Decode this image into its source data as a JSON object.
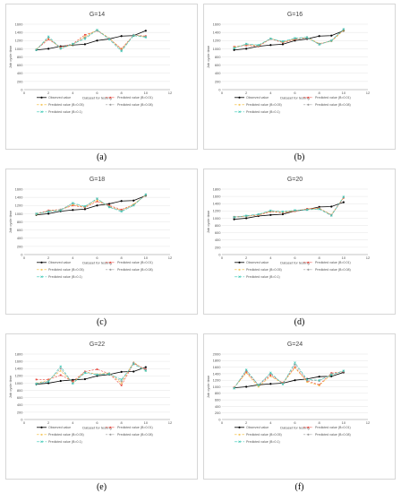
{
  "figure": {
    "legend_labels": [
      "Observed value",
      "Predicted value (B=0.01)",
      "Predicted value (B=0.05)",
      "Predicted value (B=0.08)",
      "Predicted value (B=0.1)"
    ],
    "series_colors": [
      "#000000",
      "#e8453c",
      "#f2b830",
      "#9c9c9c",
      "#3cc8b4"
    ]
  },
  "chart_data": [
    {
      "type": "line",
      "title": "G=14",
      "caption": "(a)",
      "xlabel": "Dataset for testing",
      "ylabel": "Job cycle time",
      "xlim": [
        0,
        12
      ],
      "ylim": [
        0,
        1600
      ],
      "xticks": [
        0,
        2,
        4,
        6,
        8,
        10,
        12
      ],
      "yticks": [
        0,
        200,
        400,
        600,
        800,
        1000,
        1200,
        1400,
        1600
      ],
      "x": [
        1,
        2,
        3,
        4,
        5,
        6,
        7,
        8,
        9,
        10
      ],
      "series": [
        {
          "name": "Observed value",
          "values": [
            970,
            1000,
            1060,
            1090,
            1110,
            1200,
            1240,
            1310,
            1320,
            1440
          ]
        },
        {
          "name": "Predicted value (B=0.01)",
          "values": [
            980,
            1230,
            1040,
            1120,
            1340,
            1440,
            1250,
            1000,
            1330,
            1310
          ]
        },
        {
          "name": "Predicted value (B=0.05)",
          "values": [
            990,
            1260,
            1010,
            1100,
            1300,
            1460,
            1260,
            980,
            1330,
            1300
          ]
        },
        {
          "name": "Predicted value (B=0.08)",
          "values": [
            975,
            1270,
            1000,
            1110,
            1270,
            1450,
            1250,
            960,
            1340,
            1290
          ]
        },
        {
          "name": "Predicted value (B=0.1)",
          "values": [
            970,
            1300,
            1010,
            1120,
            1240,
            1460,
            1230,
            940,
            1320,
            1280
          ]
        }
      ]
    },
    {
      "type": "line",
      "title": "G=16",
      "caption": "(b)",
      "xlabel": "Dataset for testing",
      "ylabel": "Job cycle time",
      "xlim": [
        0,
        12
      ],
      "ylim": [
        0,
        1600
      ],
      "xticks": [
        0,
        2,
        4,
        6,
        8,
        10,
        12
      ],
      "yticks": [
        0,
        200,
        400,
        600,
        800,
        1000,
        1200,
        1400,
        1600
      ],
      "x": [
        1,
        2,
        3,
        4,
        5,
        6,
        7,
        8,
        9,
        10
      ],
      "series": [
        {
          "name": "Observed value",
          "values": [
            970,
            1000,
            1060,
            1090,
            1110,
            1200,
            1240,
            1310,
            1320,
            1440
          ]
        },
        {
          "name": "Predicted value (B=0.01)",
          "values": [
            1050,
            1080,
            1060,
            1240,
            1150,
            1230,
            1280,
            1110,
            1200,
            1460
          ]
        },
        {
          "name": "Predicted value (B=0.05)",
          "values": [
            1040,
            1100,
            1070,
            1250,
            1160,
            1240,
            1270,
            1130,
            1180,
            1450
          ]
        },
        {
          "name": "Predicted value (B=0.08)",
          "values": [
            1020,
            1110,
            1080,
            1240,
            1170,
            1250,
            1260,
            1120,
            1190,
            1470
          ]
        },
        {
          "name": "Predicted value (B=0.1)",
          "values": [
            1010,
            1120,
            1090,
            1250,
            1180,
            1260,
            1280,
            1100,
            1200,
            1480
          ]
        }
      ]
    },
    {
      "type": "line",
      "title": "G=18",
      "caption": "(c)",
      "xlabel": "Dataset for testing",
      "ylabel": "Job cycle time",
      "xlim": [
        0,
        12
      ],
      "ylim": [
        0,
        1600
      ],
      "xticks": [
        0,
        2,
        4,
        6,
        8,
        10,
        12
      ],
      "yticks": [
        0,
        200,
        400,
        600,
        800,
        1000,
        1200,
        1400,
        1600
      ],
      "x": [
        1,
        2,
        3,
        4,
        5,
        6,
        7,
        8,
        9,
        10
      ],
      "series": [
        {
          "name": "Observed value",
          "values": [
            970,
            1000,
            1060,
            1090,
            1110,
            1200,
            1240,
            1310,
            1320,
            1440
          ]
        },
        {
          "name": "Predicted value (B=0.01)",
          "values": [
            1000,
            1080,
            1100,
            1200,
            1150,
            1300,
            1200,
            1100,
            1220,
            1460
          ]
        },
        {
          "name": "Predicted value (B=0.05)",
          "values": [
            980,
            1070,
            1090,
            1220,
            1160,
            1330,
            1180,
            1080,
            1230,
            1450
          ]
        },
        {
          "name": "Predicted value (B=0.08)",
          "values": [
            990,
            1060,
            1100,
            1250,
            1170,
            1360,
            1170,
            1070,
            1210,
            1460
          ]
        },
        {
          "name": "Predicted value (B=0.1)",
          "values": [
            1000,
            1050,
            1080,
            1260,
            1180,
            1370,
            1160,
            1050,
            1200,
            1470
          ]
        }
      ]
    },
    {
      "type": "line",
      "title": "G=20",
      "caption": "(d)",
      "xlabel": "Dataset for testing",
      "ylabel": "Job cycle time",
      "xlim": [
        0,
        12
      ],
      "ylim": [
        0,
        1800
      ],
      "xticks": [
        0,
        2,
        4,
        6,
        8,
        10,
        12
      ],
      "yticks": [
        0,
        200,
        400,
        600,
        800,
        1000,
        1200,
        1400,
        1600,
        1800
      ],
      "x": [
        1,
        2,
        3,
        4,
        5,
        6,
        7,
        8,
        9,
        10
      ],
      "series": [
        {
          "name": "Observed value",
          "values": [
            970,
            1000,
            1060,
            1090,
            1110,
            1200,
            1240,
            1310,
            1320,
            1440
          ]
        },
        {
          "name": "Predicted value (B=0.01)",
          "values": [
            1040,
            1060,
            1080,
            1180,
            1150,
            1190,
            1260,
            1280,
            1080,
            1560
          ]
        },
        {
          "name": "Predicted value (B=0.05)",
          "values": [
            1030,
            1050,
            1090,
            1190,
            1160,
            1200,
            1250,
            1270,
            1100,
            1570
          ]
        },
        {
          "name": "Predicted value (B=0.08)",
          "values": [
            1020,
            1060,
            1100,
            1200,
            1170,
            1210,
            1240,
            1260,
            1090,
            1580
          ]
        },
        {
          "name": "Predicted value (B=0.1)",
          "values": [
            1030,
            1070,
            1110,
            1210,
            1180,
            1220,
            1230,
            1250,
            1070,
            1590
          ]
        }
      ]
    },
    {
      "type": "line",
      "title": "G=22",
      "caption": "(e)",
      "xlabel": "Dataset for testing",
      "ylabel": "Job cycle time",
      "xlim": [
        0,
        12
      ],
      "ylim": [
        0,
        1800
      ],
      "xticks": [
        0,
        2,
        4,
        6,
        8,
        10,
        12
      ],
      "yticks": [
        0,
        200,
        400,
        600,
        800,
        1000,
        1200,
        1400,
        1600,
        1800
      ],
      "x": [
        1,
        2,
        3,
        4,
        5,
        6,
        7,
        8,
        9,
        10
      ],
      "series": [
        {
          "name": "Observed value",
          "values": [
            970,
            1000,
            1060,
            1090,
            1110,
            1200,
            1240,
            1310,
            1320,
            1440
          ]
        },
        {
          "name": "Predicted value (B=0.01)",
          "values": [
            1100,
            1100,
            1220,
            1050,
            1320,
            1380,
            1260,
            940,
            1540,
            1380
          ]
        },
        {
          "name": "Predicted value (B=0.05)",
          "values": [
            1000,
            1080,
            1340,
            1010,
            1310,
            1250,
            1280,
            1000,
            1580,
            1340
          ]
        },
        {
          "name": "Predicted value (B=0.08)",
          "values": [
            990,
            1060,
            1400,
            1000,
            1300,
            1240,
            1270,
            1050,
            1560,
            1360
          ]
        },
        {
          "name": "Predicted value (B=0.1)",
          "values": [
            980,
            1040,
            1460,
            990,
            1280,
            1230,
            1250,
            1100,
            1520,
            1340
          ]
        }
      ]
    },
    {
      "type": "line",
      "title": "G=24",
      "caption": "(f)",
      "xlabel": "Dataset for testing",
      "ylabel": "Job cycle time",
      "xlim": [
        0,
        12
      ],
      "ylim": [
        0,
        2000
      ],
      "xticks": [
        0,
        2,
        4,
        6,
        8,
        10,
        12
      ],
      "yticks": [
        0,
        200,
        400,
        600,
        800,
        1000,
        1200,
        1400,
        1600,
        1800,
        2000
      ],
      "x": [
        1,
        2,
        3,
        4,
        5,
        6,
        7,
        8,
        9,
        10
      ],
      "series": [
        {
          "name": "Observed value",
          "values": [
            970,
            1000,
            1060,
            1090,
            1110,
            1200,
            1240,
            1310,
            1320,
            1440
          ]
        },
        {
          "name": "Predicted value (B=0.01)",
          "values": [
            980,
            1450,
            1050,
            1350,
            1120,
            1600,
            1180,
            1060,
            1420,
            1460
          ]
        },
        {
          "name": "Predicted value (B=0.05)",
          "values": [
            970,
            1420,
            1000,
            1320,
            1100,
            1580,
            1150,
            1040,
            1380,
            1480
          ]
        },
        {
          "name": "Predicted value (B=0.08)",
          "values": [
            960,
            1500,
            1060,
            1400,
            1090,
            1680,
            1200,
            1180,
            1390,
            1470
          ]
        },
        {
          "name": "Predicted value (B=0.1)",
          "values": [
            950,
            1520,
            1040,
            1430,
            1080,
            1740,
            1220,
            1200,
            1360,
            1490
          ]
        }
      ]
    }
  ]
}
